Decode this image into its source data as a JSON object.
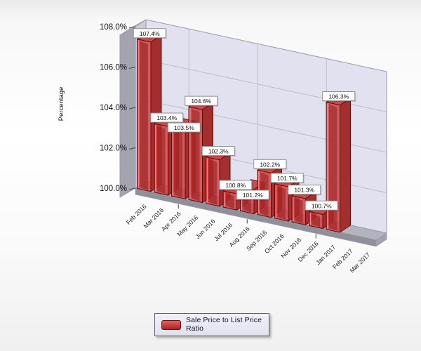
{
  "chart_data": {
    "type": "bar",
    "style": "3d-column",
    "title": "",
    "xlabel": "",
    "ylabel": "Percentage",
    "ylim": [
      100,
      108
    ],
    "ytick_step": 2,
    "ytick_labels": [
      "100.0%",
      "102.0%",
      "104.0%",
      "106.0%",
      "108.0%"
    ],
    "grid": true,
    "categories": [
      "Feb 2016",
      "Mar 2016",
      "Apr 2016",
      "May 2016",
      "Jun 2016",
      "Jul 2016",
      "Aug 2016",
      "Sep 2016",
      "Oct 2016",
      "Nov 2016",
      "Dec 2016",
      "Jan 2017",
      "Feb 2017",
      "Mar 2017"
    ],
    "series": [
      {
        "name": "Sale Price to List Price Ratio",
        "values": [
          107.4,
          103.4,
          103.5,
          104.6,
          102.3,
          100.8,
          101.2,
          102.2,
          101.7,
          101.3,
          100.7,
          106.3,
          null,
          null
        ]
      }
    ],
    "data_labels": [
      "107.4%",
      "103.4%",
      "103.5%",
      "104.6%",
      "102.3%",
      "100.8%",
      "101.2%",
      "102.2%",
      "101.7%",
      "101.3%",
      "100.7%",
      "106.3%",
      null,
      null
    ],
    "legend_position": "bottom",
    "colors": {
      "bar_front": "#d63a3a",
      "bar_top": "#cf4a4a",
      "bar_side": "#a42e2e",
      "bar_edge": "#5e1010",
      "bar_inner": "#7c1414",
      "bar_highlight": "#f59090",
      "back_wall": "#e1e1ef",
      "side_wall": "#cbcbd9",
      "outer_wall": "#a4a4b0",
      "wall_top": "#d3d3df",
      "floor": "#b4b4bf",
      "floor_front": "#90909b",
      "floor_bevel": "#a3a3ae",
      "grid_line": "#bcbccd",
      "wall_edge": "#9a9aa8",
      "axis_text": "#111111",
      "label_box_bg": "#ffffff",
      "label_box_border": "#8f8f8f"
    }
  },
  "legend": {
    "lines": [
      "Sale Price to List Price",
      "Ratio"
    ],
    "full_label": "Sale Price to List Price Ratio"
  }
}
